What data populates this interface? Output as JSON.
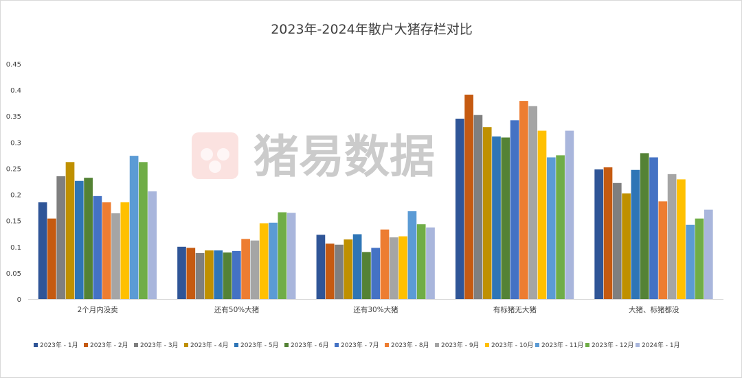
{
  "chart_data": {
    "type": "bar",
    "title": "2023年-2024年散户大猪存栏对比",
    "xlabel": "",
    "ylabel": "",
    "ylim": [
      0,
      0.45
    ],
    "yticks": [
      "0",
      "0.05",
      "0.1",
      "0.15",
      "0.2",
      "0.25",
      "0.3",
      "0.35",
      "0.4",
      "0.45"
    ],
    "grid": false,
    "legend_position": "bottom",
    "categories": [
      "2个月内没卖",
      "还有50%大猪",
      "还有30%大猪",
      "有标猪无大猪",
      "大猪、标猪都没"
    ],
    "series": [
      {
        "name": "2023年 - 1月",
        "color": "#2F5597",
        "values": [
          0.185,
          0.1,
          0.123,
          0.345,
          0.248
        ]
      },
      {
        "name": "2023年 - 2月",
        "color": "#C55A11",
        "values": [
          0.154,
          0.098,
          0.106,
          0.391,
          0.252
        ]
      },
      {
        "name": "2023年 - 3月",
        "color": "#7F7F7F",
        "values": [
          0.235,
          0.088,
          0.104,
          0.352,
          0.222
        ]
      },
      {
        "name": "2023年 - 4月",
        "color": "#BF9000",
        "values": [
          0.262,
          0.093,
          0.114,
          0.329,
          0.202
        ]
      },
      {
        "name": "2023年 - 5月",
        "color": "#2E75B6",
        "values": [
          0.226,
          0.093,
          0.124,
          0.311,
          0.247
        ]
      },
      {
        "name": "2023年 - 6月",
        "color": "#548235",
        "values": [
          0.232,
          0.089,
          0.09,
          0.309,
          0.279
        ]
      },
      {
        "name": "2023年 - 7月",
        "color": "#4472C4",
        "values": [
          0.197,
          0.092,
          0.098,
          0.342,
          0.271
        ]
      },
      {
        "name": "2023年 - 8月",
        "color": "#ED7D31",
        "values": [
          0.185,
          0.115,
          0.133,
          0.379,
          0.187
        ]
      },
      {
        "name": "2023年 - 9月",
        "color": "#A5A5A5",
        "values": [
          0.164,
          0.112,
          0.118,
          0.369,
          0.239
        ]
      },
      {
        "name": "2023年 - 10月",
        "color": "#FFC000",
        "values": [
          0.185,
          0.145,
          0.12,
          0.322,
          0.229
        ]
      },
      {
        "name": "2023年 - 11月",
        "color": "#5B9BD5",
        "values": [
          0.274,
          0.146,
          0.168,
          0.271,
          0.142
        ]
      },
      {
        "name": "2023年 - 12月",
        "color": "#70AD47",
        "values": [
          0.262,
          0.166,
          0.143,
          0.275,
          0.154
        ]
      },
      {
        "name": "2024年 - 1月",
        "color": "#A9B6DC",
        "values": [
          0.206,
          0.165,
          0.137,
          0.322,
          0.171
        ]
      }
    ]
  },
  "watermark": {
    "text": "猪易数据",
    "color": "#E94B3C"
  }
}
